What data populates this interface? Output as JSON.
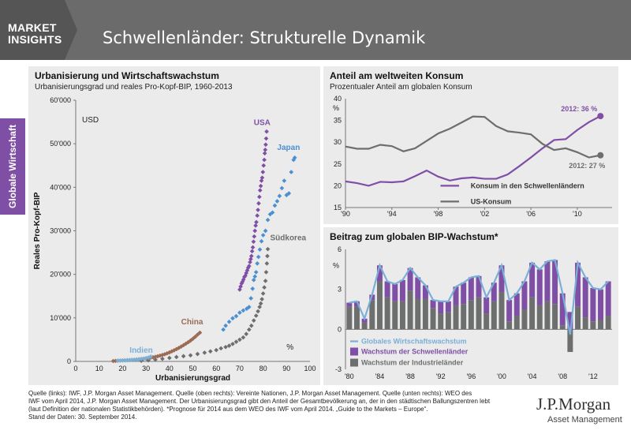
{
  "header": {
    "badge_line1": "MARKET",
    "badge_line2": "INSIGHTS",
    "title": "Schwellenländer: Strukturelle Dynamik"
  },
  "sidetab": {
    "label": "Globale Wirtschaft"
  },
  "footer": {
    "lines": [
      "Quelle (links): IWF, J.P. Morgan Asset Management. Quelle (oben rechts): Vereinte Nationen, J.P. Morgan Asset Management. Quelle (unten rechts): WEO des",
      "IWF vom April 2014, J.P. Morgan Asset Management. Der Urbanisierungsgrad gibt den Anteil der Gesamtbevölkerung an, der in den städtischen Ballungszentren lebt",
      "(laut Definition der nationalen Statistikbehörden). *Prognose für 2014 aus dem WEO des IWF vom April 2014. „Guide to the Markets – Europe“.",
      "Stand der Daten: 30. September 2014."
    ]
  },
  "logo": {
    "line1": "J.P.Morgan",
    "line2": "Asset Management"
  },
  "colors": {
    "purple": "#7f4fa5",
    "gray": "#6d6e6e",
    "lightblue": "#7aafd8",
    "blue": "#4a90d2",
    "brown": "#9b6b55",
    "header": "#6b6b6b"
  },
  "chart_data": [
    {
      "type": "scatter",
      "title": "Urbanisierung und Wirtschaftswachstum",
      "subtitle": "Urbanisierungsgrad und reales Pro-Kopf-BIP, 1960-2013",
      "xlabel": "Urbanisierungsgrad",
      "x_unit": "%",
      "ylabel": "Reales Pro-Kopf-BIP",
      "y_unit": "USD",
      "xlim": [
        0,
        100
      ],
      "ylim": [
        0,
        60000
      ],
      "xticks": [
        "0",
        "10",
        "20",
        "30",
        "40",
        "50",
        "60",
        "70",
        "80",
        "90",
        "100"
      ],
      "yticks": [
        "0",
        "10'000",
        "20'000",
        "30'000",
        "40'000",
        "50'000",
        "60'000"
      ],
      "series": [
        {
          "name": "USA",
          "color": "#7f4fa5",
          "points": [
            [
              70.0,
              16500
            ],
            [
              70.4,
              17200
            ],
            [
              70.8,
              17900
            ],
            [
              71.2,
              18300
            ],
            [
              71.6,
              18800
            ],
            [
              72.0,
              19400
            ],
            [
              72.4,
              19700
            ],
            [
              72.8,
              20300
            ],
            [
              73.2,
              20900
            ],
            [
              73.6,
              21500
            ],
            [
              74.0,
              21900
            ],
            [
              74.4,
              22800
            ],
            [
              74.7,
              23500
            ],
            [
              75.0,
              24200
            ],
            [
              75.3,
              25300
            ],
            [
              75.6,
              26200
            ],
            [
              75.9,
              27500
            ],
            [
              76.2,
              28700
            ],
            [
              76.5,
              30000
            ],
            [
              76.8,
              31200
            ],
            [
              77.1,
              32000
            ],
            [
              77.5,
              33500
            ],
            [
              77.8,
              34800
            ],
            [
              78.1,
              36300
            ],
            [
              78.4,
              37800
            ],
            [
              78.7,
              39300
            ],
            [
              79.0,
              40300
            ],
            [
              79.3,
              41500
            ],
            [
              79.6,
              42200
            ],
            [
              79.9,
              43500
            ],
            [
              80.2,
              45000
            ],
            [
              80.5,
              46300
            ],
            [
              80.7,
              47800
            ],
            [
              80.9,
              48600
            ],
            [
              81.1,
              49800
            ],
            [
              81.3,
              51200
            ],
            [
              81.5,
              52800
            ]
          ]
        },
        {
          "name": "Japan",
          "color": "#4a90d2",
          "points": [
            [
              63.0,
              7300
            ],
            [
              64.0,
              8200
            ],
            [
              65.5,
              9100
            ],
            [
              67.0,
              9900
            ],
            [
              68.5,
              10400
            ],
            [
              70.0,
              11200
            ],
            [
              71.5,
              11700
            ],
            [
              73.0,
              12100
            ],
            [
              74.0,
              12500
            ],
            [
              74.8,
              14500
            ],
            [
              75.5,
              16700
            ],
            [
              76.0,
              18700
            ],
            [
              76.5,
              19500
            ],
            [
              77.0,
              20500
            ],
            [
              77.5,
              22500
            ],
            [
              78.0,
              24000
            ],
            [
              78.6,
              25700
            ],
            [
              79.3,
              27600
            ],
            [
              80.0,
              29000
            ],
            [
              81.0,
              30000
            ],
            [
              82.0,
              32500
            ],
            [
              83.0,
              33800
            ],
            [
              84.0,
              34200
            ],
            [
              85.0,
              35800
            ],
            [
              86.0,
              36800
            ],
            [
              87.0,
              38000
            ],
            [
              88.0,
              39800
            ],
            [
              89.0,
              41500
            ],
            [
              90.0,
              38200
            ],
            [
              91.0,
              38600
            ],
            [
              92.0,
              43500
            ],
            [
              93.0,
              46300
            ],
            [
              93.5,
              46800
            ]
          ]
        },
        {
          "name": "Südkorea",
          "color": "#6d6e6e",
          "points": [
            [
              28.0,
              150
            ],
            [
              31.0,
              250
            ],
            [
              34.0,
              400
            ],
            [
              37.0,
              600
            ],
            [
              40.0,
              800
            ],
            [
              43.0,
              1000
            ],
            [
              46.0,
              1200
            ],
            [
              49.0,
              1400
            ],
            [
              52.0,
              1700
            ],
            [
              55.0,
              2000
            ],
            [
              57.5,
              2300
            ],
            [
              60.0,
              2600
            ],
            [
              62.0,
              3000
            ],
            [
              64.0,
              3300
            ],
            [
              65.5,
              3600
            ],
            [
              67.0,
              4000
            ],
            [
              68.5,
              4500
            ],
            [
              70.0,
              5000
            ],
            [
              71.5,
              5500
            ],
            [
              72.8,
              6300
            ],
            [
              74.0,
              7300
            ],
            [
              75.0,
              8200
            ],
            [
              76.0,
              9400
            ],
            [
              77.0,
              10500
            ],
            [
              77.8,
              11500
            ],
            [
              78.5,
              12500
            ],
            [
              79.0,
              13300
            ],
            [
              79.5,
              14300
            ],
            [
              80.0,
              15600
            ],
            [
              80.5,
              17000
            ],
            [
              81.0,
              18500
            ],
            [
              81.3,
              20500
            ],
            [
              81.6,
              22500
            ],
            [
              81.8,
              24200
            ],
            [
              82.0,
              25800
            ]
          ]
        },
        {
          "name": "China",
          "color": "#9b6b55",
          "points": [
            [
              16.0,
              80
            ],
            [
              17.0,
              120
            ],
            [
              18.0,
              160
            ],
            [
              19.0,
              190
            ],
            [
              20.0,
              220
            ],
            [
              21.0,
              240
            ],
            [
              22.0,
              270
            ],
            [
              23.0,
              300
            ],
            [
              24.0,
              330
            ],
            [
              25.0,
              370
            ],
            [
              26.0,
              420
            ],
            [
              27.0,
              480
            ],
            [
              28.0,
              540
            ],
            [
              29.0,
              600
            ],
            [
              30.0,
              680
            ],
            [
              31.0,
              760
            ],
            [
              32.0,
              850
            ],
            [
              33.0,
              950
            ],
            [
              34.0,
              1050
            ],
            [
              35.0,
              1180
            ],
            [
              36.0,
              1320
            ],
            [
              37.0,
              1480
            ],
            [
              38.0,
              1650
            ],
            [
              39.0,
              1850
            ],
            [
              40.0,
              2060
            ],
            [
              41.0,
              2300
            ],
            [
              42.0,
              2550
            ],
            [
              43.0,
              2820
            ],
            [
              44.0,
              3100
            ],
            [
              45.0,
              3400
            ],
            [
              46.0,
              3720
            ],
            [
              47.0,
              4060
            ],
            [
              48.0,
              4400
            ],
            [
              49.0,
              4780
            ],
            [
              50.0,
              5200
            ],
            [
              51.0,
              5650
            ],
            [
              52.0,
              6150
            ],
            [
              53.0,
              6600
            ]
          ]
        },
        {
          "name": "Indien",
          "color": "#7aafd8",
          "points": [
            [
              18.0,
              180
            ],
            [
              19.0,
              200
            ],
            [
              20.0,
              220
            ],
            [
              21.0,
              250
            ],
            [
              22.0,
              280
            ],
            [
              23.0,
              320
            ],
            [
              24.0,
              360
            ],
            [
              25.0,
              400
            ],
            [
              26.0,
              450
            ],
            [
              27.0,
              510
            ],
            [
              28.0,
              580
            ],
            [
              29.0,
              650
            ],
            [
              30.0,
              760
            ],
            [
              31.0,
              900
            ],
            [
              32.0,
              1100
            ]
          ]
        }
      ],
      "labels": [
        "USA",
        "Japan",
        "Südkorea",
        "China",
        "Indien"
      ]
    },
    {
      "type": "line",
      "title": "Anteil am weltweiten Konsum",
      "subtitle": "Prozentualer Anteil am globalen Konsum",
      "y_unit": "%",
      "xlim": [
        1990,
        2013
      ],
      "ylim": [
        15,
        40
      ],
      "xticks": [
        "'90",
        "'94",
        "'98",
        "'02",
        "'06",
        "'10"
      ],
      "yticks": [
        "15",
        "20",
        "25",
        "30",
        "35",
        "40"
      ],
      "x": [
        1990,
        1991,
        1992,
        1993,
        1994,
        1995,
        1996,
        1997,
        1998,
        1999,
        2000,
        2001,
        2002,
        2003,
        2004,
        2005,
        2006,
        2007,
        2008,
        2009,
        2010,
        2011,
        2012
      ],
      "series": [
        {
          "name": "Konsum in den Schwellenländern",
          "color": "#7f4fa5",
          "values": [
            21,
            20.6,
            20,
            20.9,
            20.8,
            21,
            22.2,
            23.5,
            22.1,
            21.2,
            21.7,
            21.9,
            21.6,
            21.6,
            22.6,
            24.5,
            26.5,
            28.6,
            30.5,
            30.7,
            32.8,
            34.6,
            36
          ]
        },
        {
          "name": "US-Konsum",
          "color": "#6d6e6e",
          "values": [
            29,
            28.5,
            28.5,
            29.4,
            29.1,
            27.9,
            28.6,
            30.3,
            32,
            33.1,
            34.5,
            35.9,
            35.8,
            33.7,
            32.5,
            32.2,
            31.8,
            29.6,
            28.2,
            28.6,
            27.7,
            26.5,
            27
          ]
        }
      ],
      "annotations": [
        "2012: 36 %",
        "2012: 27 %"
      ]
    },
    {
      "type": "bar",
      "title": "Beitrag zum globalen BIP-Wachstum*",
      "y_unit": "%",
      "xlim": [
        1980,
        2014
      ],
      "ylim": [
        -3,
        6
      ],
      "xticks": [
        "'80",
        "'84",
        "'88",
        "'92",
        "'96",
        "'00",
        "'04",
        "'08",
        "'12"
      ],
      "yticks": [
        "-3",
        "0",
        "3",
        "6"
      ],
      "categories": [
        1980,
        1981,
        1982,
        1983,
        1984,
        1985,
        1986,
        1987,
        1988,
        1989,
        1990,
        1991,
        1992,
        1993,
        1994,
        1995,
        1996,
        1997,
        1998,
        1999,
        2000,
        2001,
        2002,
        2003,
        2004,
        2005,
        2006,
        2007,
        2008,
        2009,
        2010,
        2011,
        2012,
        2013,
        2014
      ],
      "series": [
        {
          "name": "Globales Wirtschaftswachstum",
          "color": "#7aafd8",
          "kind": "line",
          "values": [
            2.0,
            2.1,
            0.8,
            2.6,
            4.8,
            3.6,
            3.4,
            3.7,
            4.6,
            3.9,
            3.3,
            2.2,
            2.1,
            2.1,
            3.2,
            3.5,
            3.9,
            4.0,
            2.4,
            3.5,
            4.8,
            2.2,
            2.7,
            3.6,
            5.0,
            4.5,
            5.1,
            5.2,
            2.7,
            -0.4,
            5.0,
            3.9,
            3.1,
            3.0,
            3.6
          ]
        },
        {
          "name": "Wachstum der Schwellenländer",
          "color": "#7f4fa5",
          "kind": "stack",
          "values": [
            0.3,
            0.4,
            0.3,
            0.4,
            1.2,
            1.2,
            1.3,
            1.6,
            1.7,
            1.6,
            1.0,
            0.6,
            0.9,
            0.8,
            1.4,
            1.6,
            1.7,
            1.6,
            1.2,
            1.4,
            2.0,
            1.6,
            1.7,
            2.1,
            2.6,
            2.7,
            3.0,
            3.3,
            2.4,
            1.3,
            3.3,
            3.0,
            2.5,
            2.3,
            2.6
          ]
        },
        {
          "name": "Wachstum der Industrieländer",
          "color": "#6d6e6e",
          "kind": "stack",
          "values": [
            1.7,
            1.7,
            0.5,
            2.2,
            3.6,
            2.4,
            2.1,
            2.1,
            2.9,
            2.3,
            2.3,
            1.6,
            1.2,
            1.3,
            1.8,
            1.9,
            2.2,
            2.4,
            1.2,
            2.1,
            2.8,
            0.6,
            1.0,
            1.5,
            2.4,
            1.8,
            2.1,
            1.9,
            0.3,
            -1.7,
            1.7,
            0.9,
            0.6,
            0.7,
            1.0
          ]
        }
      ]
    }
  ]
}
